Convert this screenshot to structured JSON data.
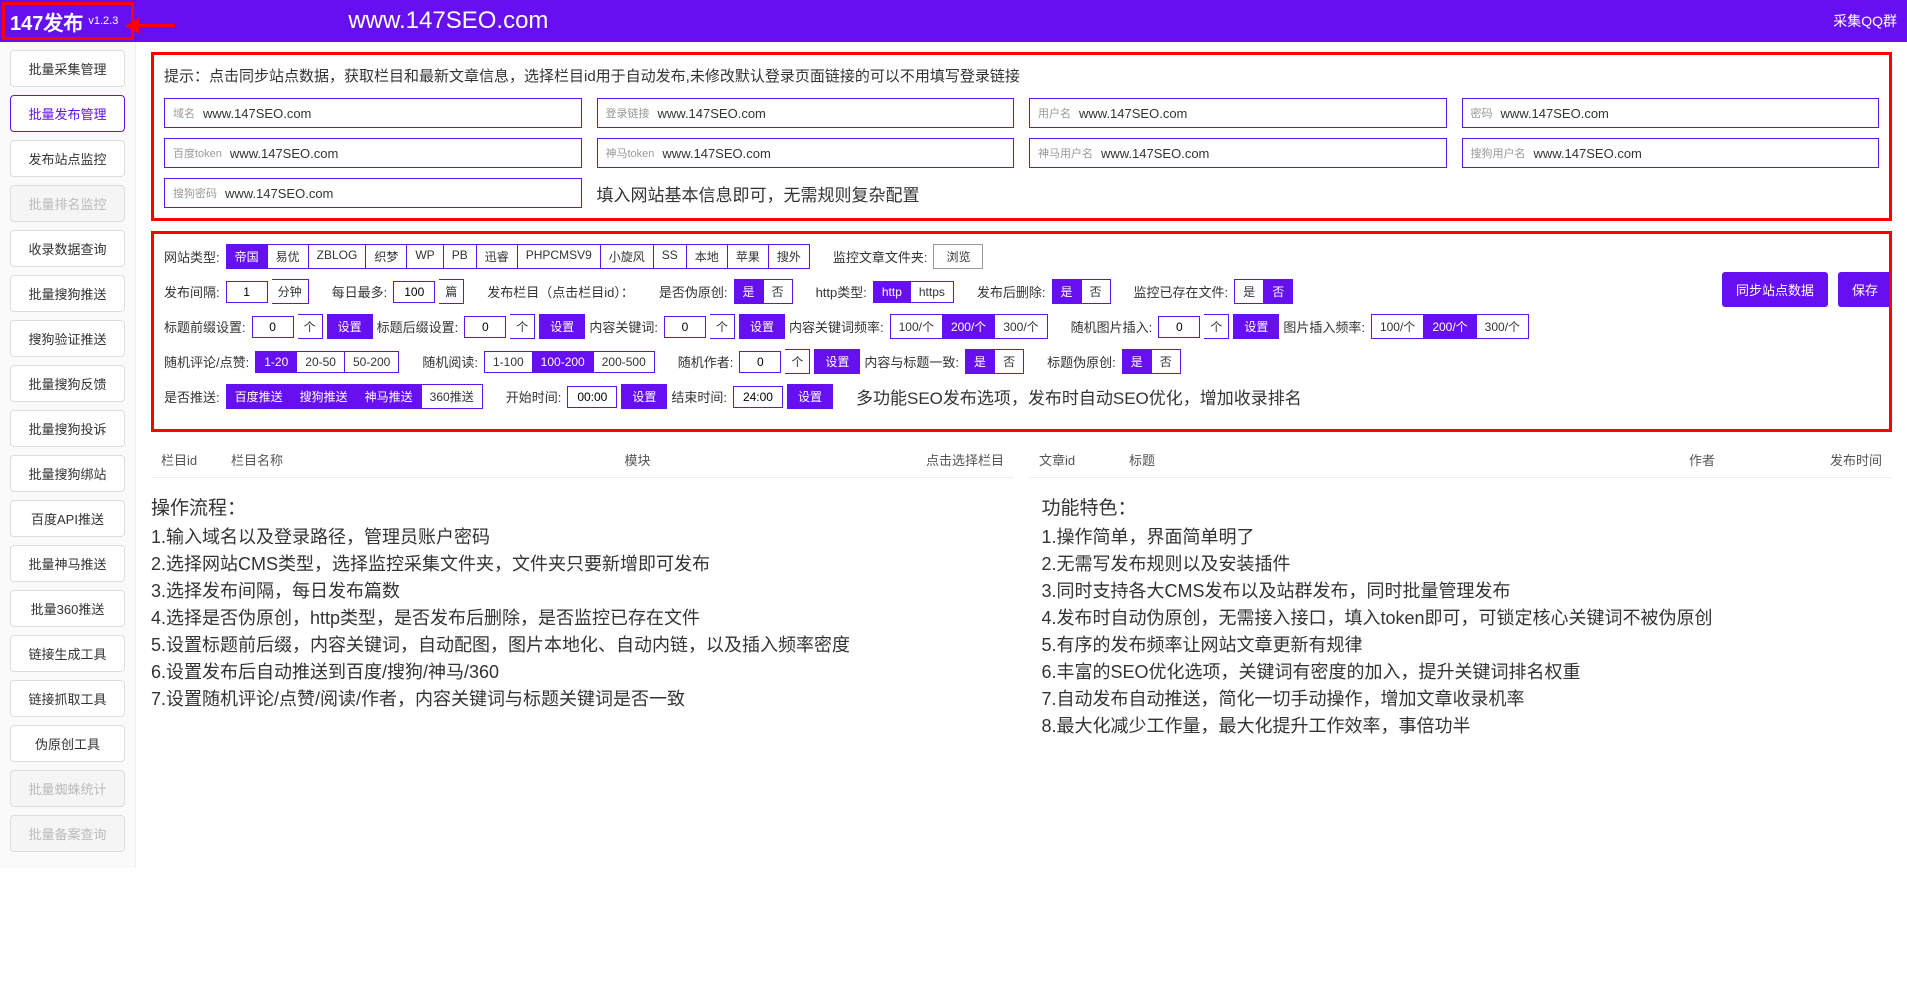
{
  "header": {
    "title": "147发布",
    "version": "v1.2.3",
    "url": "www.147SEO.com",
    "right": "采集QQ群"
  },
  "sidebar": [
    {
      "label": "批量采集管理",
      "cls": ""
    },
    {
      "label": "批量发布管理",
      "cls": "active"
    },
    {
      "label": "发布站点监控",
      "cls": ""
    },
    {
      "label": "批量排名监控",
      "cls": "disabled"
    },
    {
      "label": "收录数据查询",
      "cls": ""
    },
    {
      "label": "批量搜狗推送",
      "cls": ""
    },
    {
      "label": "搜狗验证推送",
      "cls": ""
    },
    {
      "label": "批量搜狗反馈",
      "cls": ""
    },
    {
      "label": "批量搜狗投诉",
      "cls": ""
    },
    {
      "label": "批量搜狗绑站",
      "cls": ""
    },
    {
      "label": "百度API推送",
      "cls": ""
    },
    {
      "label": "批量神马推送",
      "cls": ""
    },
    {
      "label": "批量360推送",
      "cls": ""
    },
    {
      "label": "链接生成工具",
      "cls": ""
    },
    {
      "label": "链接抓取工具",
      "cls": ""
    },
    {
      "label": "伪原创工具",
      "cls": ""
    },
    {
      "label": "批量蜘蛛统计",
      "cls": "disabled"
    },
    {
      "label": "批量备案查询",
      "cls": "disabled"
    }
  ],
  "tip": "提示：点击同步站点数据，获取栏目和最新文章信息，选择栏目id用于自动发布,未修改默认登录页面链接的可以不用填写登录链接",
  "fields": [
    {
      "label": "域名",
      "value": "www.147SEO.com"
    },
    {
      "label": "登录链接",
      "value": "www.147SEO.com"
    },
    {
      "label": "用户名",
      "value": "www.147SEO.com"
    },
    {
      "label": "密码",
      "value": "www.147SEO.com"
    },
    {
      "label": "百度token",
      "value": "www.147SEO.com"
    },
    {
      "label": "神马token",
      "value": "www.147SEO.com"
    },
    {
      "label": "神马用户名",
      "value": "www.147SEO.com"
    },
    {
      "label": "搜狗用户名",
      "value": "www.147SEO.com"
    },
    {
      "label": "搜狗密码",
      "value": "www.147SEO.com"
    }
  ],
  "note1": "填入网站基本信息即可，无需规则复杂配置",
  "note2": "多功能SEO发布选项，发布时自动SEO优化，增加收录排名",
  "labels": {
    "site_type": "网站类型:",
    "monitor_folder": "监控文章文件夹:",
    "browse": "浏览",
    "interval": "发布间隔:",
    "unit_min": "分钟",
    "daily_max": "每日最多:",
    "unit_article": "篇",
    "col_id": "发布栏目（点击栏目id）：",
    "fake": "是否伪原创:",
    "http": "http类型:",
    "del_after": "发布后删除:",
    "monitor_exist": "监控已存在文件:",
    "prefix": "标题前缀设置:",
    "suffix": "标题后缀设置:",
    "unit_ge": "个",
    "set": "设置",
    "keywords": "内容关键词:",
    "kw_freq": "内容关键词频率:",
    "rand_img": "随机图片插入:",
    "img_freq": "图片插入频率:",
    "rand_like": "随机评论/点赞:",
    "rand_read": "随机阅读:",
    "rand_author": "随机作者:",
    "match_title": "内容与标题一致:",
    "title_fake": "标题伪原创:",
    "push": "是否推送:",
    "start": "开始时间:",
    "end": "结束时间:",
    "sync": "同步站点数据",
    "save": "保存"
  },
  "v": {
    "interval": "1",
    "daily": "100",
    "prefix": "0",
    "suffix": "0",
    "kw": "0",
    "img": "0",
    "author": "0",
    "start": "00:00",
    "end": "24:00"
  },
  "opts": {
    "site_type": [
      {
        "t": "帝国",
        "s": 1
      },
      {
        "t": "易优"
      },
      {
        "t": "ZBLOG"
      },
      {
        "t": "织梦"
      },
      {
        "t": "WP"
      },
      {
        "t": "PB"
      },
      {
        "t": "迅睿"
      },
      {
        "t": "PHPCMSV9"
      },
      {
        "t": "小旋风"
      },
      {
        "t": "SS"
      },
      {
        "t": "本地"
      },
      {
        "t": "苹果"
      },
      {
        "t": "搜外"
      }
    ],
    "yesno_yes": [
      {
        "t": "是",
        "s": 1
      },
      {
        "t": "否"
      }
    ],
    "yesno_no": [
      {
        "t": "是"
      },
      {
        "t": "否",
        "s": 1
      }
    ],
    "http": [
      {
        "t": "http",
        "s": 1
      },
      {
        "t": "https"
      }
    ],
    "freq200": [
      {
        "t": "100/个"
      },
      {
        "t": "200/个",
        "s": 1
      },
      {
        "t": "300/个"
      }
    ],
    "like": [
      {
        "t": "1-20",
        "s": 1
      },
      {
        "t": "20-50"
      },
      {
        "t": "50-200"
      }
    ],
    "read": [
      {
        "t": "1-100"
      },
      {
        "t": "100-200",
        "s": 1
      },
      {
        "t": "200-500"
      }
    ],
    "push": [
      {
        "t": "百度推送",
        "s": 1
      },
      {
        "t": "搜狗推送",
        "s": 1
      },
      {
        "t": "神马推送",
        "s": 1
      },
      {
        "t": "360推送"
      }
    ]
  },
  "table1": [
    "栏目id",
    "栏目名称",
    "模块",
    "点击选择栏目"
  ],
  "table2": [
    "文章id",
    "标题",
    "作者",
    "发布时间"
  ],
  "flow": {
    "title": "操作流程：",
    "items": [
      "1.输入域名以及登录路径，管理员账户密码",
      "2.选择网站CMS类型，选择监控采集文件夹，文件夹只要新增即可发布",
      "3.选择发布间隔，每日发布篇数",
      "4.选择是否伪原创，http类型，是否发布后删除，是否监控已存在文件",
      "5.设置标题前后缀，内容关键词，自动配图，图片本地化、自动内链，以及插入频率密度",
      "6.设置发布后自动推送到百度/搜狗/神马/360",
      "7.设置随机评论/点赞/阅读/作者，内容关键词与标题关键词是否一致"
    ]
  },
  "feat": {
    "title": "功能特色：",
    "items": [
      "1.操作简单，界面简单明了",
      "2.无需写发布规则以及安装插件",
      "3.同时支持各大CMS发布以及站群发布，同时批量管理发布",
      "4.发布时自动伪原创，无需接入接口，填入token即可，可锁定核心关键词不被伪原创",
      "5.有序的发布频率让网站文章更新有规律",
      "6.丰富的SEO优化选项，关键词有密度的加入，提升关键词排名权重",
      "7.自动发布自动推送，简化一切手动操作，增加文章收录机率",
      "8.最大化减少工作量，最大化提升工作效率，事倍功半"
    ]
  }
}
